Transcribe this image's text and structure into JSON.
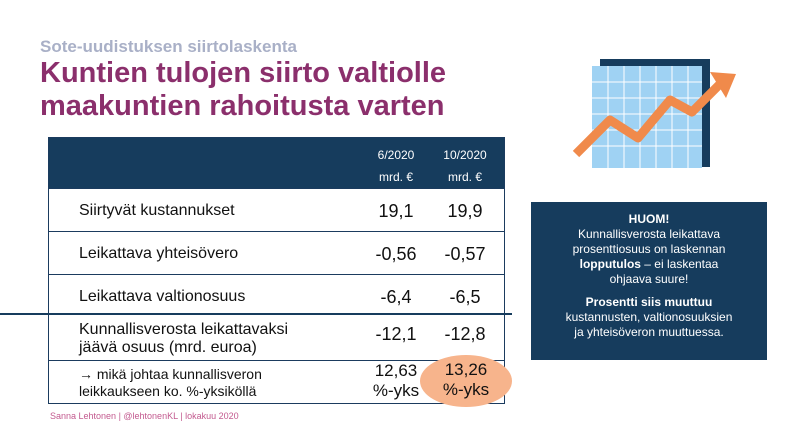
{
  "kicker": "Sote-uudistuksen siirtolaskenta",
  "title_line1": "Kuntien tulojen siirto valtiolle",
  "title_line2": "maakuntien rahoitusta varten",
  "table": {
    "col1_period": "6/2020",
    "col1_unit": "mrd. €",
    "col2_period": "10/2020",
    "col2_unit": "mrd. €",
    "rows": [
      {
        "label": "Siirtyvät kustannukset",
        "v1": "19,1",
        "v2": "19,9"
      },
      {
        "label": "Leikattava yhteisövero",
        "v1": "-0,56",
        "v2": "-0,57"
      },
      {
        "label": "Leikattava valtionosuus",
        "v1": "-6,4",
        "v2": "-6,5"
      },
      {
        "label_line1": "Kunnallisverosta leikattavaksi",
        "label_line2": "jäävä osuus (mrd. euroa)",
        "v1": "-12,1",
        "v2": "-12,8"
      },
      {
        "label_line1": "→ mikä johtaa kunnallisveron",
        "label_line2": "leikkaukseen ko. %-yksiköllä",
        "v1_line1": "12,63",
        "v1_line2": "%-yks",
        "v2_line1": "13,26",
        "v2_line2": "%-yks"
      }
    ]
  },
  "note": {
    "heading": "HUOM!",
    "p1_a": "Kunnallisverosta leikattava",
    "p1_b": "prosenttiosuus on laskennan",
    "p1_bold": "lopputulos",
    "p1_c": " – ei laskentaa",
    "p1_d": "ohjaava suure!",
    "p2_bold": "Prosentti siis muuttuu",
    "p2_a": "kustannusten, valtionosuuksien",
    "p2_b": "ja yhteisöveron muuttuessa."
  },
  "footer": "Sanna Lehtonen  |  @lehtonenKL  |  lokakuu 2020",
  "colors": {
    "navy": "#163c5d",
    "title": "#8b2f6c",
    "highlight": "#f7b48c",
    "chart_arrow": "#f08a4b"
  }
}
